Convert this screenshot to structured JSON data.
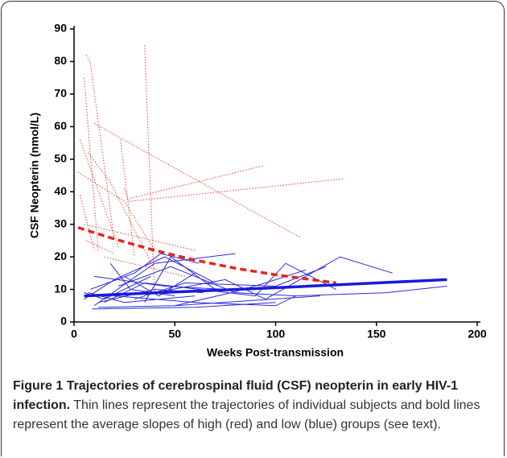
{
  "chart_data": {
    "type": "line",
    "xlabel": "Weeks Post-transmission",
    "ylabel": "CSF Neopterin (nmol/L)",
    "xlim": [
      0,
      200
    ],
    "xticks": [
      0,
      50,
      100,
      150,
      200
    ],
    "ylim": [
      0,
      90
    ],
    "yticks": [
      0,
      10,
      20,
      30,
      40,
      50,
      60,
      70,
      80,
      90
    ],
    "series": [
      {
        "color": "#e8423a",
        "style": "dotted",
        "x": [
          6,
          8,
          20
        ],
        "values": [
          82,
          80,
          25
        ]
      },
      {
        "color": "#e8423a",
        "style": "dotted",
        "x": [
          5,
          12
        ],
        "values": [
          75,
          22
        ]
      },
      {
        "color": "#e8423a",
        "style": "dotted",
        "x": [
          10,
          112
        ],
        "values": [
          61,
          26
        ]
      },
      {
        "color": "#e8423a",
        "style": "dotted",
        "x": [
          3,
          22
        ],
        "values": [
          56,
          23
        ]
      },
      {
        "color": "#e8423a",
        "style": "dotted",
        "x": [
          35,
          40
        ],
        "values": [
          85,
          8
        ]
      },
      {
        "color": "#e8423a",
        "style": "dotted",
        "x": [
          23,
          30
        ],
        "values": [
          56,
          20
        ]
      },
      {
        "color": "#e8423a",
        "style": "dotted",
        "x": [
          7,
          18,
          40
        ],
        "values": [
          52,
          43,
          16
        ]
      },
      {
        "color": "#e8423a",
        "style": "dotted",
        "x": [
          2,
          25,
          40
        ],
        "values": [
          46,
          37,
          22
        ]
      },
      {
        "color": "#e8423a",
        "style": "dotted",
        "x": [
          3,
          10
        ],
        "values": [
          39,
          22
        ]
      },
      {
        "color": "#e8423a",
        "style": "dotted",
        "x": [
          25,
          27,
          134
        ],
        "values": [
          41,
          37,
          44
        ]
      },
      {
        "color": "#e8423a",
        "style": "dotted",
        "x": [
          28,
          94
        ],
        "values": [
          38,
          48
        ]
      },
      {
        "color": "#e8423a",
        "style": "dotted",
        "x": [
          5,
          60
        ],
        "values": [
          30,
          22
        ]
      },
      {
        "color": "#e8423a",
        "style": "dotted",
        "x": [
          6,
          20
        ],
        "values": [
          25,
          21
        ]
      },
      {
        "color": "#e8423a",
        "style": "dotted",
        "x": [
          15,
          55
        ],
        "values": [
          20,
          14
        ]
      },
      {
        "color": "#2b2bd8",
        "style": "solid",
        "x": [
          5,
          20,
          45,
          70
        ],
        "values": [
          7,
          13,
          20,
          12
        ]
      },
      {
        "color": "#2b2bd8",
        "style": "solid",
        "x": [
          8,
          30,
          43,
          62
        ],
        "values": [
          10,
          15,
          21,
          18
        ]
      },
      {
        "color": "#2b2bd8",
        "style": "solid",
        "x": [
          10,
          40,
          80
        ],
        "values": [
          5,
          18,
          21
        ]
      },
      {
        "color": "#2b2bd8",
        "style": "solid",
        "x": [
          7,
          25,
          60
        ],
        "values": [
          9,
          6,
          8
        ]
      },
      {
        "color": "#2b2bd8",
        "style": "solid",
        "x": [
          12,
          50,
          122
        ],
        "values": [
          4.5,
          5,
          8
        ]
      },
      {
        "color": "#2b2bd8",
        "style": "solid",
        "x": [
          15,
          35,
          90,
          105,
          130
        ],
        "values": [
          6,
          12,
          8,
          18,
          10
        ]
      },
      {
        "color": "#2b2bd8",
        "style": "solid",
        "x": [
          20,
          60,
          100,
          110
        ],
        "values": [
          8,
          6,
          5,
          8
        ]
      },
      {
        "color": "#2b2bd8",
        "style": "solid",
        "x": [
          10,
          45,
          75
        ],
        "values": [
          14,
          11,
          10
        ]
      },
      {
        "color": "#2b2bd8",
        "style": "solid",
        "x": [
          30,
          55,
          100,
          125
        ],
        "values": [
          7,
          12,
          11,
          17
        ]
      },
      {
        "color": "#2b2bd8",
        "style": "solid",
        "x": [
          40,
          75,
          95,
          132,
          158
        ],
        "values": [
          9,
          13,
          7,
          20,
          15
        ]
      },
      {
        "color": "#2b2bd8",
        "style": "solid",
        "x": [
          18,
          28,
          50
        ],
        "values": [
          18,
          10,
          8
        ]
      },
      {
        "color": "#2b2bd8",
        "style": "solid",
        "x": [
          9,
          60,
          100
        ],
        "values": [
          4,
          4.5,
          6
        ]
      },
      {
        "color": "#2b2bd8",
        "style": "solid",
        "x": [
          22,
          48,
          80,
          110,
          155,
          185
        ],
        "values": [
          11,
          17,
          9,
          8,
          9,
          11
        ]
      },
      {
        "color": "#2b2bd8",
        "style": "solid",
        "x": [
          35,
          48,
          70
        ],
        "values": [
          6,
          20,
          10
        ]
      },
      {
        "color": "#2b2bd8",
        "style": "solid",
        "x": [
          12,
          40,
          64
        ],
        "values": [
          6,
          10,
          9
        ]
      },
      {
        "color": "#2b2bd8",
        "style": "solid",
        "x": [
          50,
          78,
          95,
          115
        ],
        "values": [
          5,
          9,
          12,
          16
        ]
      },
      {
        "color": "#2b2bd8",
        "style": "solid",
        "x": [
          5,
          15,
          38
        ],
        "values": [
          9,
          7,
          14
        ]
      },
      {
        "color": "#2b2bd8",
        "style": "solid",
        "x": [
          25,
          42,
          60
        ],
        "values": [
          14,
          8,
          15
        ]
      },
      {
        "color": "#e8231a",
        "style": "dashed",
        "bold": true,
        "x": [
          2,
          20,
          40,
          60,
          80,
          100,
          130
        ],
        "values": [
          29,
          25.5,
          22,
          19,
          16.5,
          14.5,
          12
        ]
      },
      {
        "color": "#1a1adb",
        "style": "solid",
        "bold": true,
        "x": [
          5,
          50,
          100,
          150,
          185
        ],
        "values": [
          8,
          9.2,
          10.5,
          12,
          13
        ]
      }
    ]
  },
  "caption": {
    "label": "Figure 1",
    "title": "Trajectories of cerebrospinal fluid (CSF) neopterin in early HIV-1 infection.",
    "text": "Thin lines represent the trajectories of individual subjects and bold lines represent the average slopes of high (red) and low (blue) groups (see text)."
  }
}
